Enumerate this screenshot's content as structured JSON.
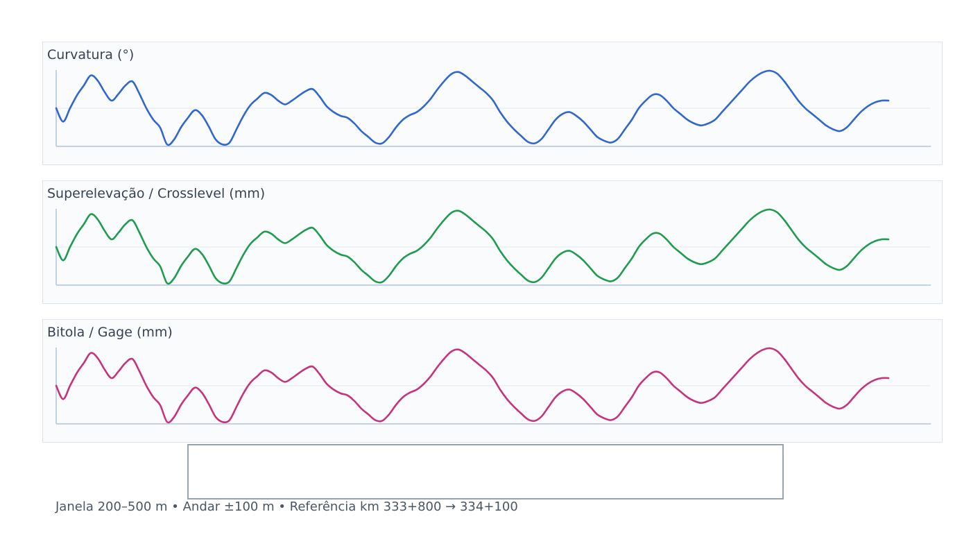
{
  "chart_data": [
    {
      "type": "line",
      "title": "Curvatura (°)",
      "color": "#2f66d0",
      "xlim": [
        0,
        1200
      ],
      "ylim": [
        -1,
        1
      ],
      "x": [
        0,
        10,
        20,
        30,
        40,
        50,
        60,
        70,
        80,
        90,
        100,
        110,
        120,
        130,
        140,
        150,
        160,
        170,
        180,
        190,
        200,
        210,
        220,
        230,
        240,
        250,
        260,
        270,
        280,
        290,
        300,
        310,
        320,
        330,
        340,
        350,
        360,
        370,
        380,
        390,
        400,
        410,
        420,
        430,
        440,
        450,
        460,
        470,
        480,
        490,
        500,
        510,
        520,
        530,
        540,
        550,
        560,
        570,
        580,
        590,
        600,
        610,
        620,
        630,
        640,
        650,
        660,
        670,
        680,
        690,
        700,
        710,
        720,
        730,
        740,
        750,
        760,
        770,
        780,
        790,
        800,
        810,
        820,
        830,
        840,
        850,
        860,
        870,
        880,
        890,
        900,
        910,
        920,
        930,
        940,
        950,
        960,
        970,
        980,
        990,
        1000,
        1010,
        1020,
        1030,
        1040,
        1050,
        1060,
        1070,
        1080,
        1090,
        1100,
        1110,
        1120,
        1130,
        1140,
        1150,
        1160,
        1170,
        1180,
        1190,
        1200
      ],
      "series": [
        {
          "values": [
            0.0,
            -0.35,
            0.0,
            0.34,
            0.6,
            0.86,
            0.72,
            0.42,
            0.2,
            0.38,
            0.6,
            0.7,
            0.38,
            0.0,
            -0.3,
            -0.51,
            -0.95,
            -0.82,
            -0.5,
            -0.25,
            -0.05,
            -0.18,
            -0.48,
            -0.82,
            -0.95,
            -0.9,
            -0.55,
            -0.2,
            0.08,
            0.25,
            0.4,
            0.35,
            0.2,
            0.1,
            0.2,
            0.33,
            0.45,
            0.5,
            0.3,
            0.05,
            -0.1,
            -0.2,
            -0.25,
            -0.4,
            -0.6,
            -0.75,
            -0.9,
            -0.92,
            -0.75,
            -0.5,
            -0.3,
            -0.18,
            -0.1,
            0.05,
            0.25,
            0.5,
            0.72,
            0.9,
            0.95,
            0.85,
            0.7,
            0.55,
            0.4,
            0.2,
            -0.1,
            -0.35,
            -0.55,
            -0.72,
            -0.88,
            -0.92,
            -0.8,
            -0.55,
            -0.3,
            -0.15,
            -0.1,
            -0.2,
            -0.35,
            -0.55,
            -0.75,
            -0.85,
            -0.9,
            -0.8,
            -0.55,
            -0.3,
            0.0,
            0.2,
            0.35,
            0.35,
            0.2,
            0.0,
            -0.15,
            -0.3,
            -0.4,
            -0.45,
            -0.4,
            -0.3,
            -0.1,
            0.1,
            0.3,
            0.5,
            0.7,
            0.85,
            0.95,
            0.98,
            0.9,
            0.7,
            0.45,
            0.2,
            0.0,
            -0.15,
            -0.3,
            -0.45,
            -0.55,
            -0.6,
            -0.5,
            -0.3,
            -0.1,
            0.05,
            0.15,
            0.2,
            0.2
          ]
        }
      ]
    },
    {
      "type": "line",
      "title": "Superelevação / Crosslevel (mm)",
      "color": "#1f9b4e",
      "xlim": [
        0,
        1200
      ],
      "ylim": [
        -1,
        1
      ],
      "x": [
        0,
        10,
        20,
        30,
        40,
        50,
        60,
        70,
        80,
        90,
        100,
        110,
        120,
        130,
        140,
        150,
        160,
        170,
        180,
        190,
        200,
        210,
        220,
        230,
        240,
        250,
        260,
        270,
        280,
        290,
        300,
        310,
        320,
        330,
        340,
        350,
        360,
        370,
        380,
        390,
        400,
        410,
        420,
        430,
        440,
        450,
        460,
        470,
        480,
        490,
        500,
        510,
        520,
        530,
        540,
        550,
        560,
        570,
        580,
        590,
        600,
        610,
        620,
        630,
        640,
        650,
        660,
        670,
        680,
        690,
        700,
        710,
        720,
        730,
        740,
        750,
        760,
        770,
        780,
        790,
        800,
        810,
        820,
        830,
        840,
        850,
        860,
        870,
        880,
        890,
        900,
        910,
        920,
        930,
        940,
        950,
        960,
        970,
        980,
        990,
        1000,
        1010,
        1020,
        1030,
        1040,
        1050,
        1060,
        1070,
        1080,
        1090,
        1100,
        1110,
        1120,
        1130,
        1140,
        1150,
        1160,
        1170,
        1180,
        1190,
        1200
      ],
      "series": [
        {
          "values": [
            0.0,
            -0.35,
            0.0,
            0.34,
            0.6,
            0.86,
            0.72,
            0.42,
            0.2,
            0.38,
            0.6,
            0.7,
            0.38,
            0.0,
            -0.3,
            -0.51,
            -0.95,
            -0.82,
            -0.5,
            -0.25,
            -0.05,
            -0.18,
            -0.48,
            -0.82,
            -0.95,
            -0.9,
            -0.55,
            -0.2,
            0.08,
            0.25,
            0.4,
            0.35,
            0.2,
            0.1,
            0.2,
            0.33,
            0.45,
            0.5,
            0.3,
            0.05,
            -0.1,
            -0.2,
            -0.25,
            -0.4,
            -0.6,
            -0.75,
            -0.9,
            -0.92,
            -0.75,
            -0.5,
            -0.3,
            -0.18,
            -0.1,
            0.05,
            0.25,
            0.5,
            0.72,
            0.9,
            0.95,
            0.85,
            0.7,
            0.55,
            0.4,
            0.2,
            -0.1,
            -0.35,
            -0.55,
            -0.72,
            -0.88,
            -0.92,
            -0.8,
            -0.55,
            -0.3,
            -0.15,
            -0.1,
            -0.2,
            -0.35,
            -0.55,
            -0.75,
            -0.85,
            -0.9,
            -0.8,
            -0.55,
            -0.3,
            0.0,
            0.2,
            0.35,
            0.35,
            0.2,
            0.0,
            -0.15,
            -0.3,
            -0.4,
            -0.45,
            -0.4,
            -0.3,
            -0.1,
            0.1,
            0.3,
            0.5,
            0.7,
            0.85,
            0.95,
            0.98,
            0.9,
            0.7,
            0.45,
            0.2,
            0.0,
            -0.15,
            -0.3,
            -0.45,
            -0.55,
            -0.6,
            -0.5,
            -0.3,
            -0.1,
            0.05,
            0.15,
            0.2,
            0.2
          ]
        }
      ]
    },
    {
      "type": "line",
      "title": "Bitola / Gage (mm)",
      "color": "#c8327a",
      "xlim": [
        0,
        1200
      ],
      "ylim": [
        -1,
        1
      ],
      "x": [
        0,
        10,
        20,
        30,
        40,
        50,
        60,
        70,
        80,
        90,
        100,
        110,
        120,
        130,
        140,
        150,
        160,
        170,
        180,
        190,
        200,
        210,
        220,
        230,
        240,
        250,
        260,
        270,
        280,
        290,
        300,
        310,
        320,
        330,
        340,
        350,
        360,
        370,
        380,
        390,
        400,
        410,
        420,
        430,
        440,
        450,
        460,
        470,
        480,
        490,
        500,
        510,
        520,
        530,
        540,
        550,
        560,
        570,
        580,
        590,
        600,
        610,
        620,
        630,
        640,
        650,
        660,
        670,
        680,
        690,
        700,
        710,
        720,
        730,
        740,
        750,
        760,
        770,
        780,
        790,
        800,
        810,
        820,
        830,
        840,
        850,
        860,
        870,
        880,
        890,
        900,
        910,
        920,
        930,
        940,
        950,
        960,
        970,
        980,
        990,
        1000,
        1010,
        1020,
        1030,
        1040,
        1050,
        1060,
        1070,
        1080,
        1090,
        1100,
        1110,
        1120,
        1130,
        1140,
        1150,
        1160,
        1170,
        1180,
        1190,
        1200
      ],
      "series": [
        {
          "values": [
            0.0,
            -0.35,
            0.0,
            0.34,
            0.6,
            0.86,
            0.72,
            0.42,
            0.2,
            0.38,
            0.6,
            0.7,
            0.38,
            0.0,
            -0.3,
            -0.51,
            -0.95,
            -0.82,
            -0.5,
            -0.25,
            -0.05,
            -0.18,
            -0.48,
            -0.82,
            -0.95,
            -0.9,
            -0.55,
            -0.2,
            0.08,
            0.25,
            0.4,
            0.35,
            0.2,
            0.1,
            0.2,
            0.33,
            0.45,
            0.5,
            0.3,
            0.05,
            -0.1,
            -0.2,
            -0.25,
            -0.4,
            -0.6,
            -0.75,
            -0.9,
            -0.92,
            -0.75,
            -0.5,
            -0.3,
            -0.18,
            -0.1,
            0.05,
            0.25,
            0.5,
            0.72,
            0.9,
            0.95,
            0.85,
            0.7,
            0.55,
            0.4,
            0.2,
            -0.1,
            -0.35,
            -0.55,
            -0.72,
            -0.88,
            -0.92,
            -0.8,
            -0.55,
            -0.3,
            -0.15,
            -0.1,
            -0.2,
            -0.35,
            -0.55,
            -0.75,
            -0.85,
            -0.9,
            -0.8,
            -0.55,
            -0.3,
            0.0,
            0.2,
            0.35,
            0.35,
            0.2,
            0.0,
            -0.15,
            -0.3,
            -0.4,
            -0.45,
            -0.4,
            -0.3,
            -0.1,
            0.1,
            0.3,
            0.5,
            0.7,
            0.85,
            0.95,
            0.98,
            0.9,
            0.7,
            0.45,
            0.2,
            0.0,
            -0.15,
            -0.3,
            -0.45,
            -0.55,
            -0.6,
            -0.5,
            -0.3,
            -0.1,
            0.05,
            0.15,
            0.2,
            0.2
          ]
        }
      ]
    }
  ],
  "footer": {
    "caption": "Janela 200–500 m • Andar ±100 m • Referência km 333+800 → 334+100"
  }
}
